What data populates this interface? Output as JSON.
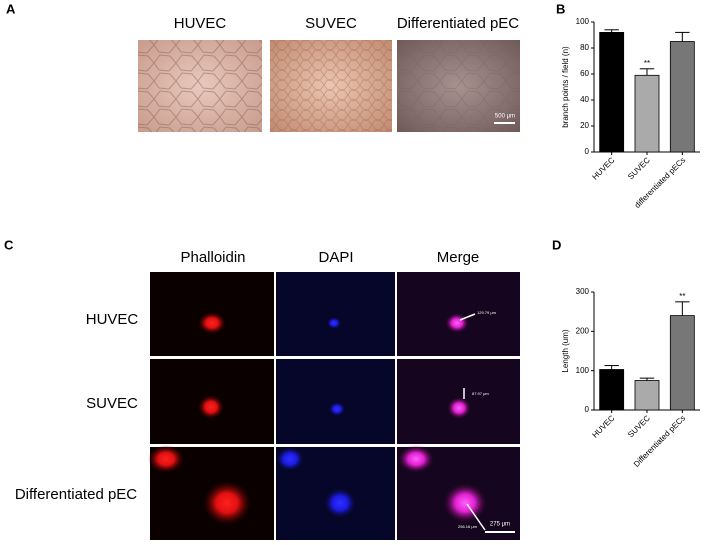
{
  "panels": {
    "a": "A",
    "b": "B",
    "c": "C",
    "d": "D"
  },
  "panel_a": {
    "columns": [
      "HUVEC",
      "SUVEC",
      "Differentiated pEC"
    ],
    "scale_bar": "500 μm"
  },
  "panel_c": {
    "columns": [
      "Phalloidin",
      "DAPI",
      "Merge"
    ],
    "rows": [
      "HUVEC",
      "SUVEC",
      "Differentiated pEC"
    ],
    "measurements": [
      "129.79 μm",
      "87.97 μm",
      "256.16 μm"
    ],
    "scale_bar": "275 μm"
  },
  "chart_data": [
    {
      "type": "bar",
      "ylabel": "branch points / field (n)",
      "categories": [
        "HUVEC",
        "SUVEC",
        "differentiated pECs"
      ],
      "values": [
        92,
        59,
        85
      ],
      "errors": [
        2,
        5,
        7
      ],
      "colors": [
        "#000000",
        "#aaaaaa",
        "#777777"
      ],
      "annotations": [
        null,
        "**",
        null
      ],
      "ylim": [
        0,
        100
      ],
      "yticks": [
        0,
        20,
        40,
        60,
        80,
        100
      ]
    },
    {
      "type": "bar",
      "ylabel": "Length (um)",
      "categories": [
        "HUVEC",
        "SUVEC",
        "Differentiated pECs"
      ],
      "values": [
        103,
        75,
        240
      ],
      "errors": [
        10,
        6,
        35
      ],
      "colors": [
        "#000000",
        "#aaaaaa",
        "#777777"
      ],
      "annotations": [
        null,
        null,
        "**"
      ],
      "ylim": [
        0,
        300
      ],
      "yticks": [
        0,
        100,
        200,
        300
      ]
    }
  ]
}
